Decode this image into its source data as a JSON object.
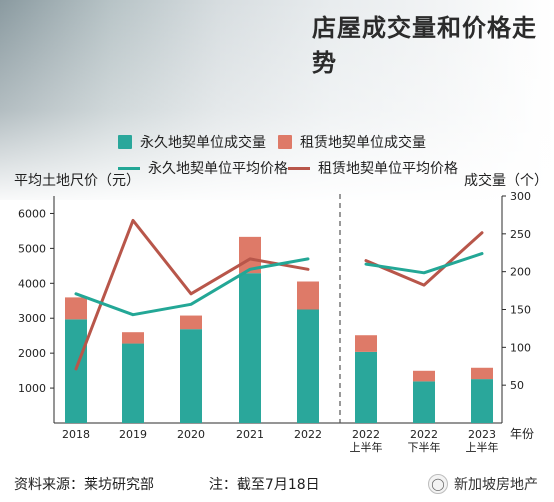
{
  "chart_data": {
    "type": "bar",
    "title": "店屋成交量和价格走势",
    "left_axis_title": "平均土地尺价（元）",
    "right_axis_title": "成交量（个）",
    "x_axis_title": "年份",
    "left_ylim": [
      0,
      6500
    ],
    "right_ylim": [
      0,
      300
    ],
    "left_ticks": [
      "1000",
      "2000",
      "3000",
      "4000",
      "5000",
      "6000"
    ],
    "right_ticks": [
      "50",
      "100",
      "150",
      "200",
      "250",
      "300"
    ],
    "categories": [
      "2018",
      "2019",
      "2020",
      "2021",
      "2022",
      "2022 上半年",
      "2022 下半年",
      "2023 上半年"
    ],
    "category_labels": [
      [
        "2018"
      ],
      [
        "2019"
      ],
      [
        "2020"
      ],
      [
        "2021"
      ],
      [
        "2022"
      ],
      [
        "2022",
        "上半年"
      ],
      [
        "2022",
        "下半年"
      ],
      [
        "2023",
        "上半年"
      ]
    ],
    "series": [
      {
        "name": "永久地契单位成交量",
        "kind": "bar",
        "axis": "right",
        "color": "#2aa79b",
        "values": [
          137,
          105,
          124,
          198,
          150,
          94,
          55,
          58
        ]
      },
      {
        "name": "租赁地契单位成交量",
        "kind": "bar",
        "axis": "right",
        "color": "#de7a68",
        "values": [
          29,
          15,
          18,
          48,
          37,
          22,
          14,
          15
        ]
      },
      {
        "name": "永久地契单位平均价格",
        "kind": "line",
        "axis": "left",
        "color": "#23a796",
        "values": [
          3700,
          3100,
          3400,
          4400,
          4700,
          4550,
          4300,
          4850
        ]
      },
      {
        "name": "租赁地契单位平均价格",
        "kind": "line",
        "axis": "left",
        "color": "#b8564a",
        "values": [
          1550,
          5800,
          3700,
          4700,
          4400,
          4650,
          3950,
          5450
        ]
      }
    ]
  },
  "footer": {
    "source": "资料来源：莱坊研究部",
    "note": "注：截至7月18日"
  },
  "watermark": {
    "text": "新加坡房地产"
  },
  "colors": {
    "axis": "#2b2b2b",
    "divider": "#555555"
  }
}
